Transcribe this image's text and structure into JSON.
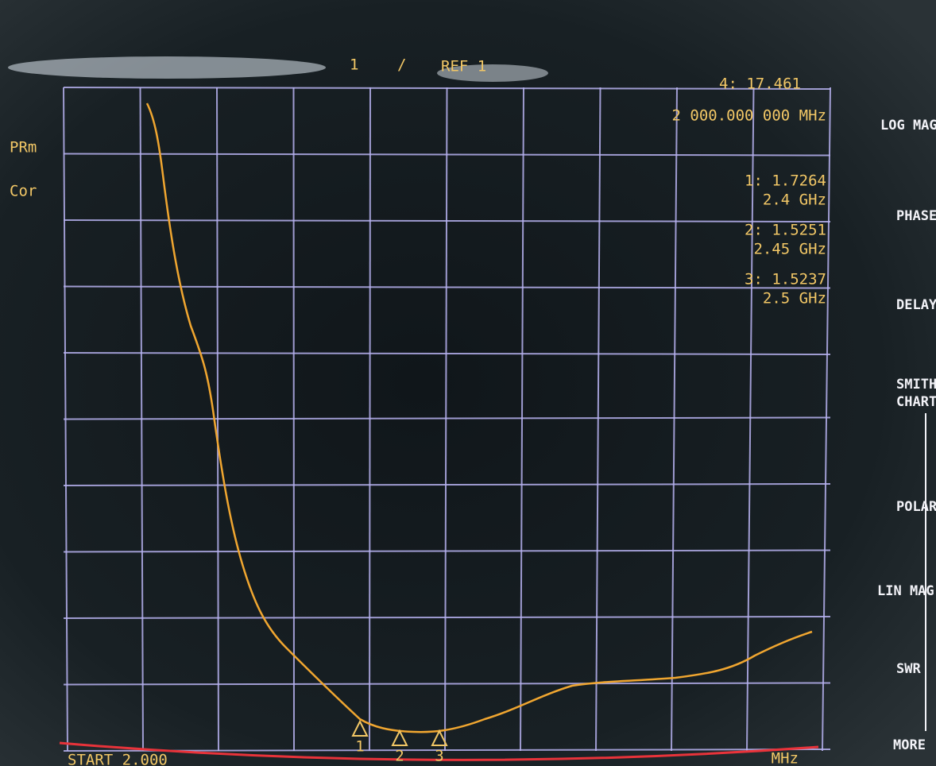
{
  "header": {
    "channel": "1",
    "separator": "/",
    "ref": "REF 1"
  },
  "marker_readout": {
    "active": "4: 17.461",
    "frequency": "2 000.000 000 MHz"
  },
  "status": [
    "PRm",
    "Cor"
  ],
  "markers": [
    {
      "label": "1: 1.7264",
      "freq": "2.4 GHz"
    },
    {
      "label": "2: 1.5251",
      "freq": "2.45 GHz"
    },
    {
      "label": "3: 1.5237",
      "freq": "2.5 GHz"
    }
  ],
  "marker_flags": [
    "1",
    "2",
    "3"
  ],
  "softkeys": [
    [
      "LOG MAG"
    ],
    [
      "PHASE"
    ],
    [
      "DELAY"
    ],
    [
      "SMITH",
      "CHART"
    ],
    [
      "POLAR"
    ],
    [
      "LIN MAG"
    ],
    [
      "SWR"
    ],
    [
      "MORE"
    ]
  ],
  "footer": {
    "start": "START 2.000",
    "stop": "MHz"
  }
}
